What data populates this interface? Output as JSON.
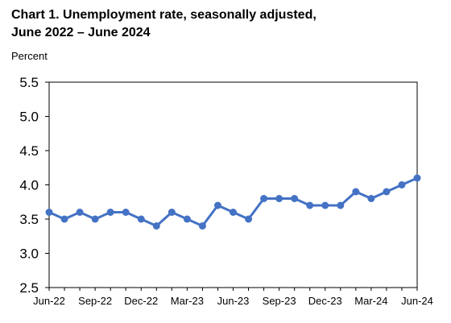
{
  "chart_data": {
    "type": "line",
    "title_line1": "Chart 1. Unemployment rate, seasonally adjusted,",
    "title_line2": "June 2022 – June 2024",
    "ylabel": "Percent",
    "xlabel": "",
    "ylim": [
      2.5,
      5.5
    ],
    "y_ticks": [
      "2.5",
      "3.0",
      "3.5",
      "4.0",
      "4.5",
      "5.0",
      "5.5"
    ],
    "x_tick_labels": [
      {
        "index": 0,
        "label": "Jun-22"
      },
      {
        "index": 3,
        "label": "Sep-22"
      },
      {
        "index": 6,
        "label": "Dec-22"
      },
      {
        "index": 9,
        "label": "Mar-23"
      },
      {
        "index": 12,
        "label": "Jun-23"
      },
      {
        "index": 15,
        "label": "Sep-23"
      },
      {
        "index": 18,
        "label": "Dec-23"
      },
      {
        "index": 21,
        "label": "Mar-24"
      },
      {
        "index": 24,
        "label": "Jun-24"
      }
    ],
    "x": [
      "2022-06",
      "2022-07",
      "2022-08",
      "2022-09",
      "2022-10",
      "2022-11",
      "2022-12",
      "2023-01",
      "2023-02",
      "2023-03",
      "2023-04",
      "2023-05",
      "2023-06",
      "2023-07",
      "2023-08",
      "2023-09",
      "2023-10",
      "2023-11",
      "2023-12",
      "2024-01",
      "2024-02",
      "2024-03",
      "2024-04",
      "2024-05",
      "2024-06"
    ],
    "series": [
      {
        "values": [
          3.6,
          3.5,
          3.6,
          3.5,
          3.6,
          3.6,
          3.5,
          3.4,
          3.6,
          3.5,
          3.4,
          3.7,
          3.6,
          3.5,
          3.8,
          3.8,
          3.8,
          3.7,
          3.7,
          3.7,
          3.9,
          3.8,
          3.9,
          4.0,
          4.1
        ],
        "color": "#4472c4"
      }
    ],
    "grid": false,
    "legend": "none"
  }
}
